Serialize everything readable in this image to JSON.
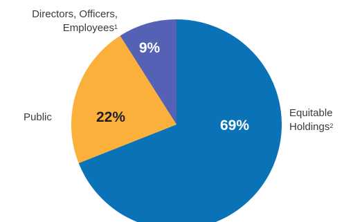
{
  "chart_data": {
    "type": "pie",
    "slices": [
      {
        "label_line1": "Equitable",
        "label_line2": "Holdings",
        "footnote": "2",
        "value": 69,
        "value_label": "69%",
        "color": "#0a72b7",
        "value_color": "#ffffff"
      },
      {
        "label_line1": "Public",
        "label_line2": "",
        "footnote": "",
        "value": 22,
        "value_label": "22%",
        "color": "#fbb03b",
        "value_color": "#231f20"
      },
      {
        "label_line1": "Directors, Officers,",
        "label_line2": "Employees",
        "footnote": "1",
        "value": 9,
        "value_label": "9%",
        "color": "#5461b4",
        "value_color": "#ffffff"
      }
    ],
    "start": "12 o'clock",
    "direction": "clockwise"
  }
}
